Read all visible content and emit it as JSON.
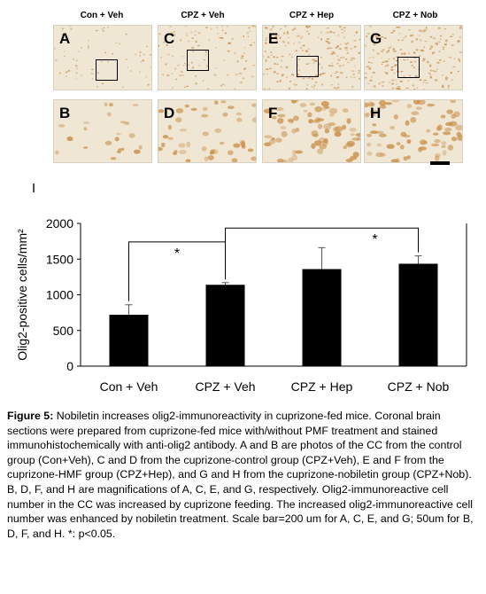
{
  "figure": {
    "columns": [
      {
        "header": "Con + Veh",
        "top_letter": "A",
        "bottom_letter": "B"
      },
      {
        "header": "CPZ + Veh",
        "top_letter": "C",
        "bottom_letter": "D"
      },
      {
        "header": "CPZ + Hep",
        "top_letter": "E",
        "bottom_letter": "F"
      },
      {
        "header": "CPZ + Nob",
        "top_letter": "G",
        "bottom_letter": "H"
      }
    ],
    "chart_panel_label": "I"
  },
  "colors": {
    "bar": "#000000",
    "tissue_bg": "#efe6d4",
    "stain": "#c9904a"
  },
  "chart_data": {
    "type": "bar",
    "categories": [
      "Con + Veh",
      "CPZ + Veh",
      "CPZ + Hep",
      "CPZ + Nob"
    ],
    "values": [
      720,
      1140,
      1360,
      1435
    ],
    "errors": [
      140,
      30,
      300,
      110
    ],
    "ylabel": "Olig2-positive cells/mm²",
    "ylim": [
      0,
      2000
    ],
    "yticks": [
      0,
      500,
      1000,
      1500,
      2000
    ],
    "significance": [
      {
        "from": 0,
        "to": 1,
        "label": "*"
      },
      {
        "from": 1,
        "to": 3,
        "label": "*"
      }
    ],
    "grid": false,
    "legend": "none"
  },
  "caption": {
    "label": "Figure 5:",
    "text": " Nobiletin increases olig2-immunoreactivity in cuprizone-fed mice. Coronal brain sections were prepared from cuprizone-fed mice with/without PMF treatment and stained immunohistochemically with anti-olig2 antibody. A and B are photos of the CC from the control group (Con+Veh), C and D from the cuprizone-control group (CPZ+Veh), E and F from the cuprizone-HMF group (CPZ+Hep), and G and H from the cuprizone-nobiletin group (CPZ+Nob). B, D, F, and H are magnifications of A, C, E, and G, respectively. Olig2-immunoreactive cell number in the CC was increased by cuprizone feeding. The increased olig2-immunoreactive cell number was enhanced by nobiletin treatment. Scale bar=200 um for A, C, E, and G; 50um for B, D, F, and H. *: p<0.05."
  }
}
